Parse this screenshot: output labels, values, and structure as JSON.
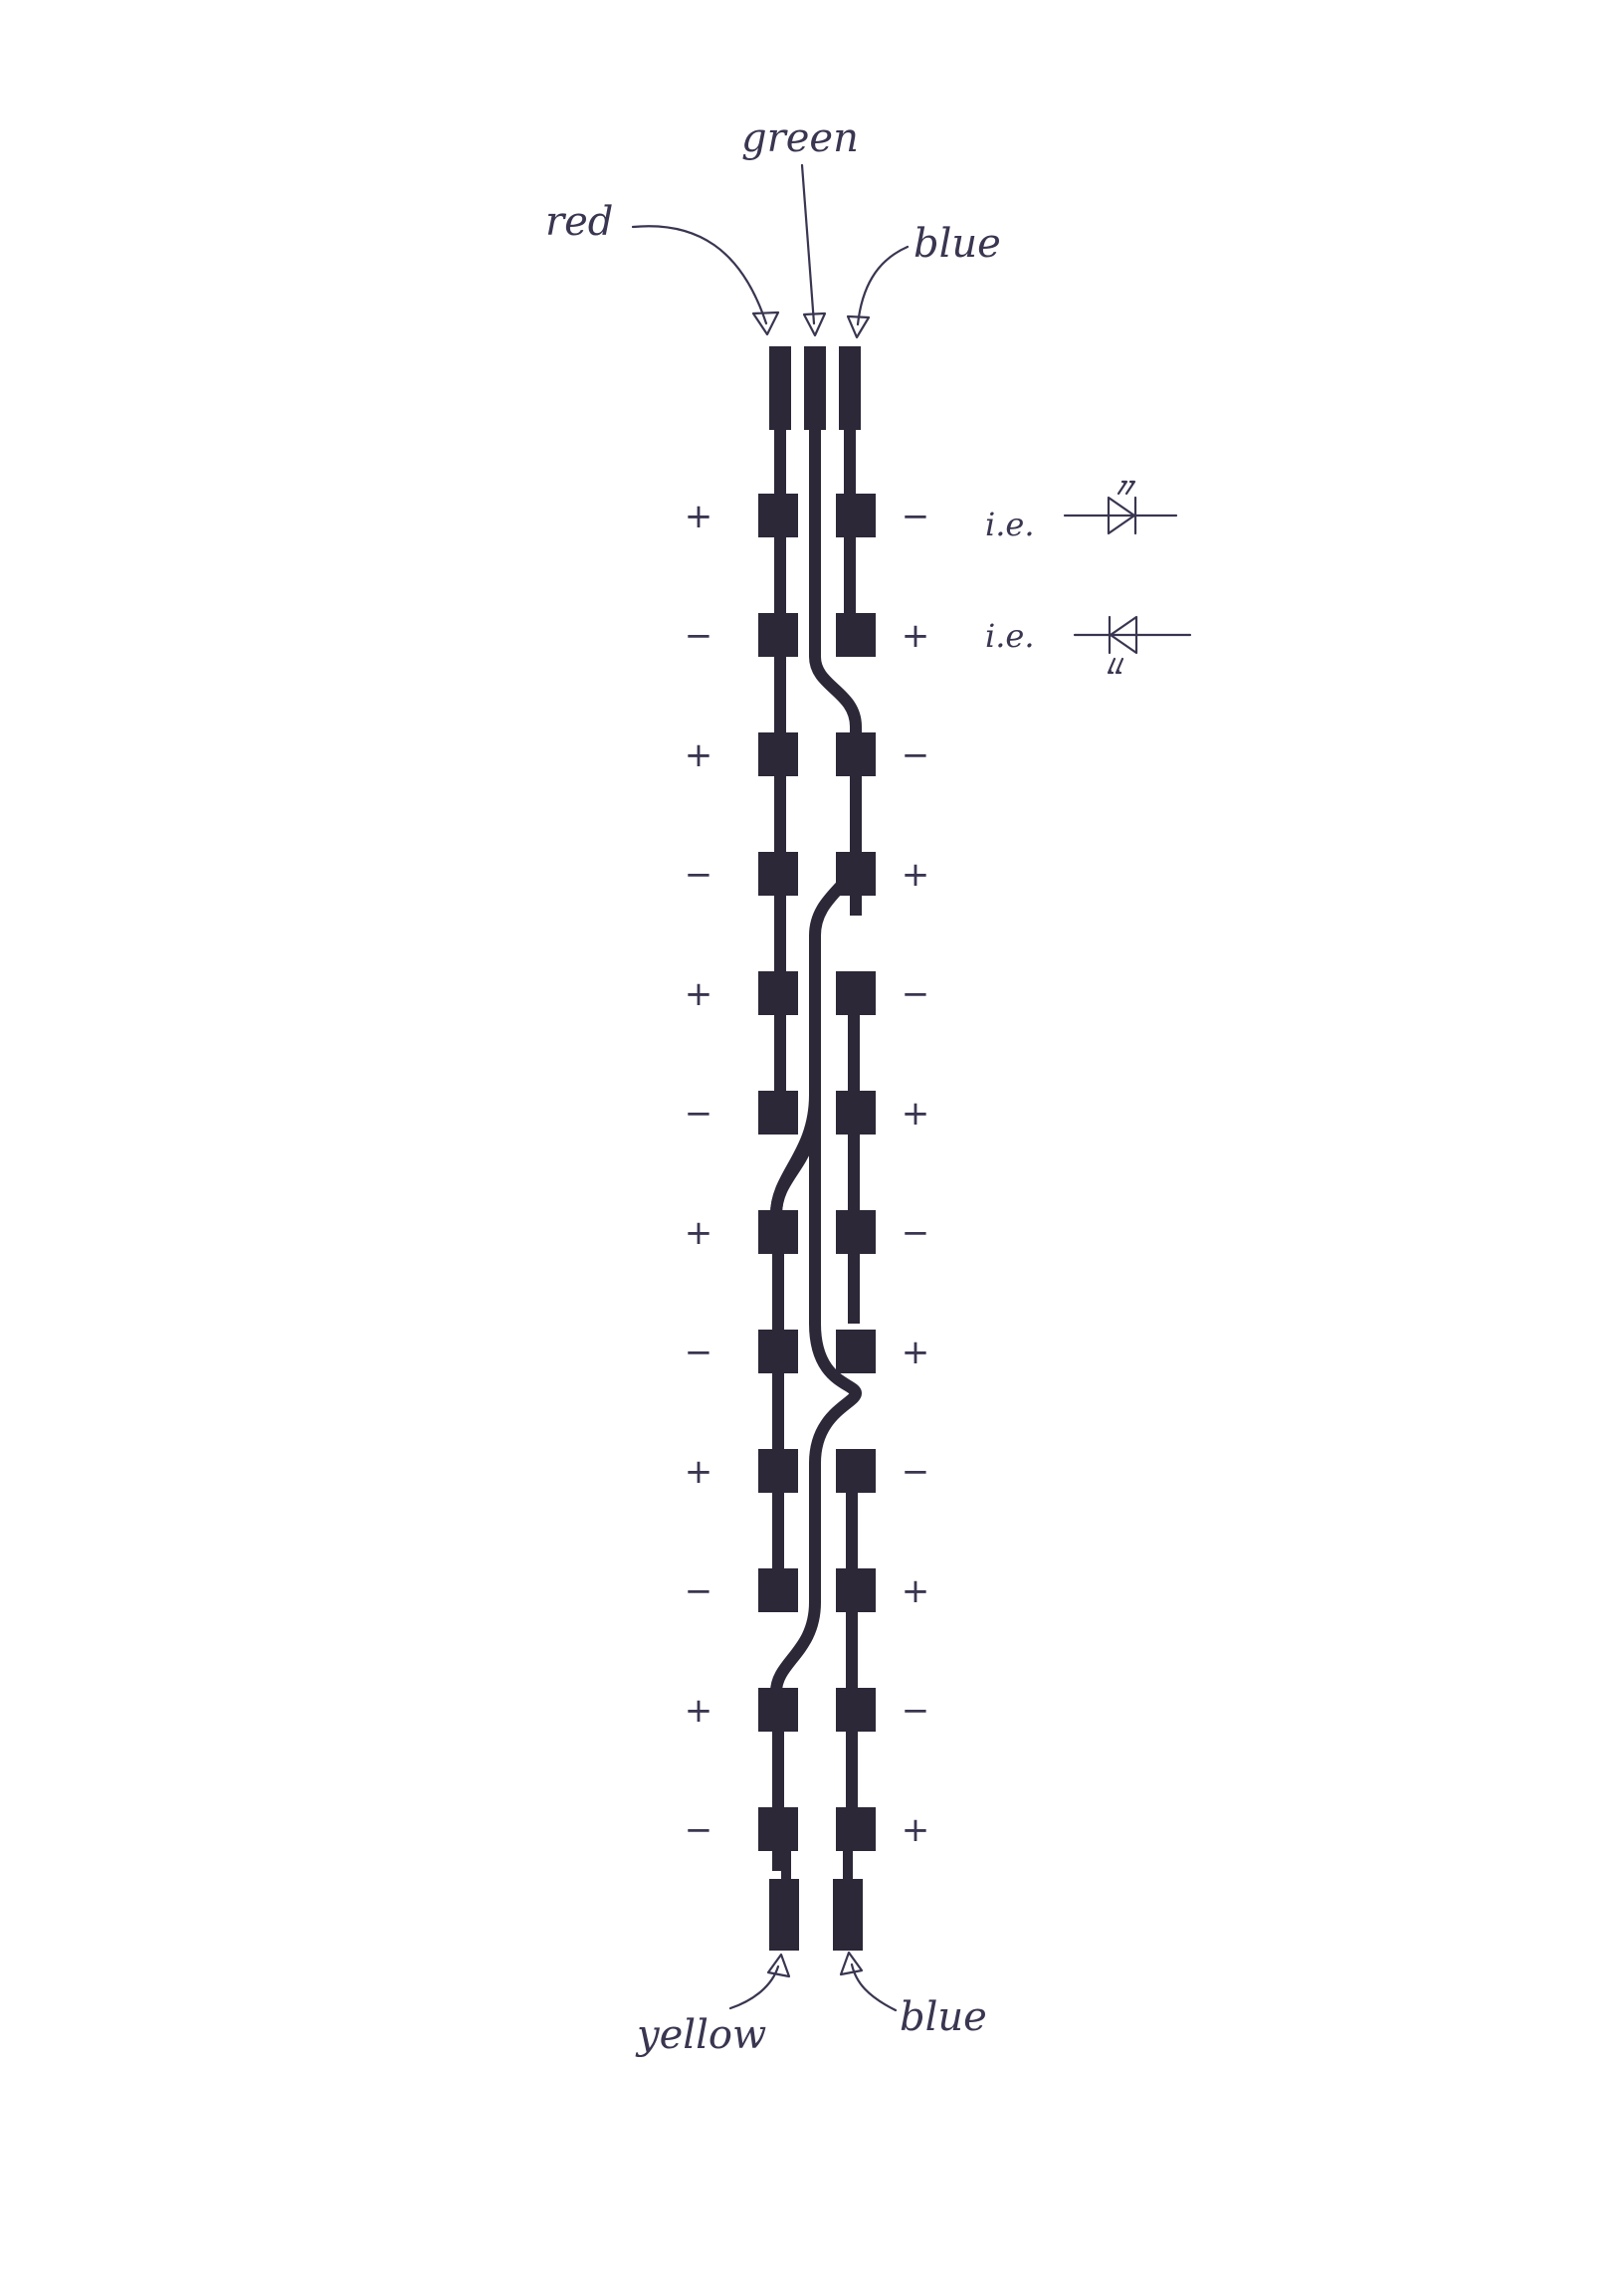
{
  "wire_labels": {
    "red": "red",
    "green": "green",
    "blue_top": "blue",
    "yellow": "yellow",
    "blue_bottom": "blue"
  },
  "polarity": {
    "left": [
      "+",
      "−",
      "+",
      "−",
      "+",
      "−",
      "+",
      "−",
      "+",
      "−",
      "+",
      "−"
    ],
    "right": [
      "−",
      "+",
      "−",
      "+",
      "−",
      "+",
      "−",
      "+",
      "−",
      "+",
      "−",
      "+"
    ]
  },
  "legend": {
    "ie_1": "i.e.",
    "ie_2": "i.e."
  },
  "colors": {
    "ink": "#2c2838",
    "pen": "#3a3550",
    "paper": "#ffffff"
  }
}
